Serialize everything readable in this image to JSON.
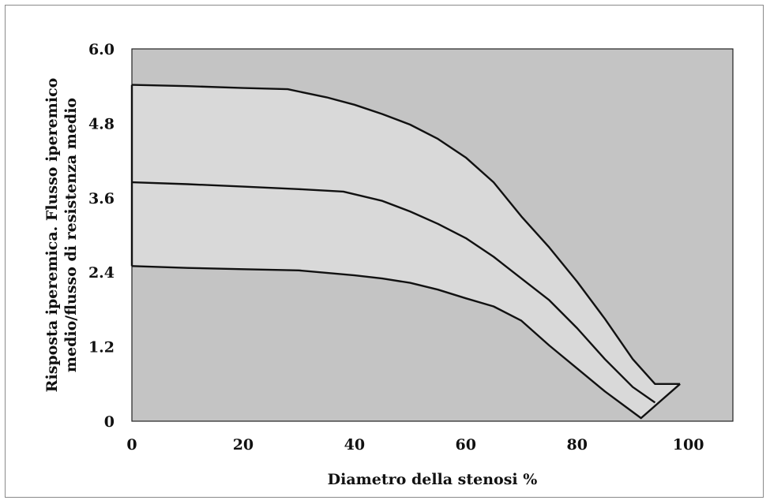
{
  "chart_data": {
    "type": "line",
    "title": "",
    "xlabel": "Diametro della stenosi %",
    "ylabel_lines": [
      "Risposta iperemica. Flusso iperemico",
      "medio/flusso di resistenza medio"
    ],
    "xlim": [
      0,
      108
    ],
    "ylim": [
      0,
      6.0
    ],
    "x_ticks": [
      0,
      20,
      40,
      60,
      80,
      100
    ],
    "x_tick_labels": [
      "0",
      "20",
      "40",
      "60",
      "80",
      "100"
    ],
    "y_ticks": [
      0,
      1.2,
      2.4,
      3.6,
      4.8,
      6.0
    ],
    "y_tick_labels": [
      "0",
      "1.2",
      "2.4",
      "3.6",
      "4.8",
      "6.0"
    ],
    "grid": false,
    "colors": {
      "plot_background": "#c4c4c4",
      "band_fill": "#d9d9d9",
      "line": "#111111"
    },
    "series": [
      {
        "role": "upper",
        "x": [
          0,
          10,
          20,
          28,
          35,
          40,
          45,
          50,
          55,
          60,
          65,
          70,
          75,
          80,
          85,
          90,
          94,
          98.5
        ],
        "y": [
          5.42,
          5.4,
          5.37,
          5.35,
          5.22,
          5.1,
          4.95,
          4.78,
          4.55,
          4.25,
          3.85,
          3.3,
          2.8,
          2.25,
          1.65,
          1.0,
          0.6,
          0.6
        ]
      },
      {
        "role": "middle",
        "x": [
          0,
          10,
          20,
          30,
          38,
          45,
          50,
          55,
          60,
          65,
          70,
          75,
          80,
          85,
          90,
          94
        ],
        "y": [
          3.85,
          3.82,
          3.78,
          3.74,
          3.7,
          3.55,
          3.38,
          3.18,
          2.95,
          2.65,
          2.3,
          1.95,
          1.5,
          1.0,
          0.55,
          0.3
        ]
      },
      {
        "role": "lower",
        "x": [
          0,
          10,
          20,
          30,
          40,
          45,
          50,
          55,
          60,
          65,
          70,
          75,
          80,
          85,
          91.5,
          98.5
        ],
        "y": [
          2.5,
          2.47,
          2.45,
          2.43,
          2.35,
          2.3,
          2.23,
          2.12,
          1.98,
          1.85,
          1.62,
          1.22,
          0.85,
          0.48,
          0.05,
          0.6
        ]
      }
    ]
  }
}
